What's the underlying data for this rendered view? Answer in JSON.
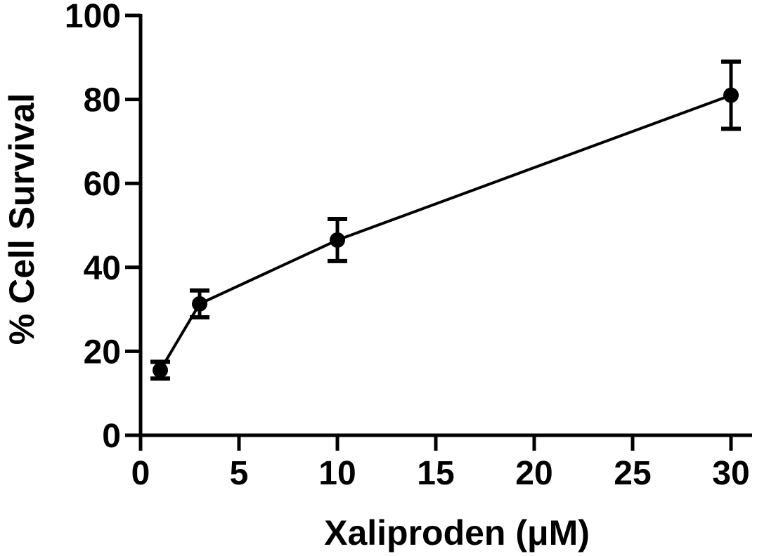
{
  "chart_data": {
    "type": "line",
    "title": "",
    "xlabel": "Xaliproden (μM)",
    "ylabel": "% Cell Survival",
    "xlim": [
      0,
      31
    ],
    "ylim": [
      0,
      100
    ],
    "x_ticks": [
      0,
      5,
      10,
      15,
      20,
      25,
      30
    ],
    "y_ticks": [
      0,
      20,
      40,
      60,
      80,
      100
    ],
    "grid": false,
    "legend": "none",
    "series": [
      {
        "x": [
          1,
          3,
          10,
          30
        ],
        "y": [
          15.5,
          31.3,
          46.5,
          81
        ],
        "error": [
          2,
          3.2,
          5,
          8
        ],
        "color": "#000000",
        "marker": "circle"
      }
    ]
  }
}
